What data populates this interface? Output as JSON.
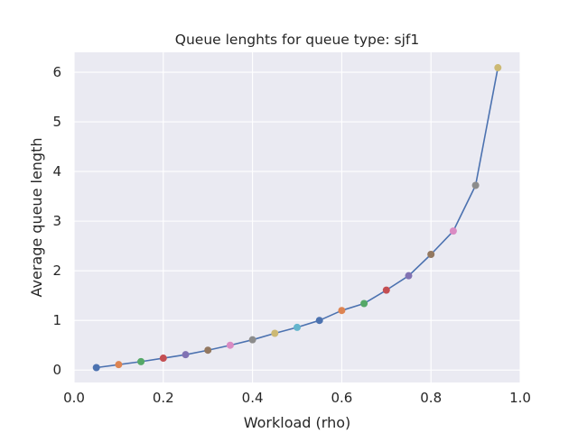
{
  "chart_data": {
    "type": "line",
    "title": "Queue lenghts for queue type: sjf1",
    "xlabel": "Workload (rho)",
    "ylabel": "Average queue length",
    "xlim": [
      0.0,
      1.0
    ],
    "ylim": [
      -0.25,
      6.4
    ],
    "xticks": [
      0.0,
      0.2,
      0.4,
      0.6,
      0.8,
      1.0
    ],
    "xtick_labels": [
      "0.0",
      "0.2",
      "0.4",
      "0.6",
      "0.8",
      "1.0"
    ],
    "yticks": [
      0,
      1,
      2,
      3,
      4,
      5,
      6
    ],
    "ytick_labels": [
      "0",
      "1",
      "2",
      "3",
      "4",
      "5",
      "6"
    ],
    "grid": true,
    "line_color": "#4c72b0",
    "background_color": "#eaeaf2",
    "series": [
      {
        "x": [
          0.05,
          0.1,
          0.15,
          0.2,
          0.25,
          0.3,
          0.35,
          0.4,
          0.45,
          0.5,
          0.55,
          0.6,
          0.65,
          0.7,
          0.75,
          0.8,
          0.85,
          0.9,
          0.95
        ],
        "y": [
          0.05,
          0.11,
          0.17,
          0.24,
          0.31,
          0.4,
          0.5,
          0.61,
          0.74,
          0.86,
          1.0,
          1.2,
          1.34,
          1.61,
          1.9,
          2.33,
          2.8,
          3.72,
          6.09
        ],
        "marker_colors": [
          "#4c72b0",
          "#dd8452",
          "#55a868",
          "#c44e52",
          "#8172b3",
          "#937860",
          "#da8bc3",
          "#8c8c8c",
          "#ccb974",
          "#64b5cd",
          "#4c72b0",
          "#dd8452",
          "#55a868",
          "#c44e52",
          "#8172b3",
          "#937860",
          "#da8bc3",
          "#8c8c8c",
          "#ccb974"
        ]
      }
    ]
  }
}
